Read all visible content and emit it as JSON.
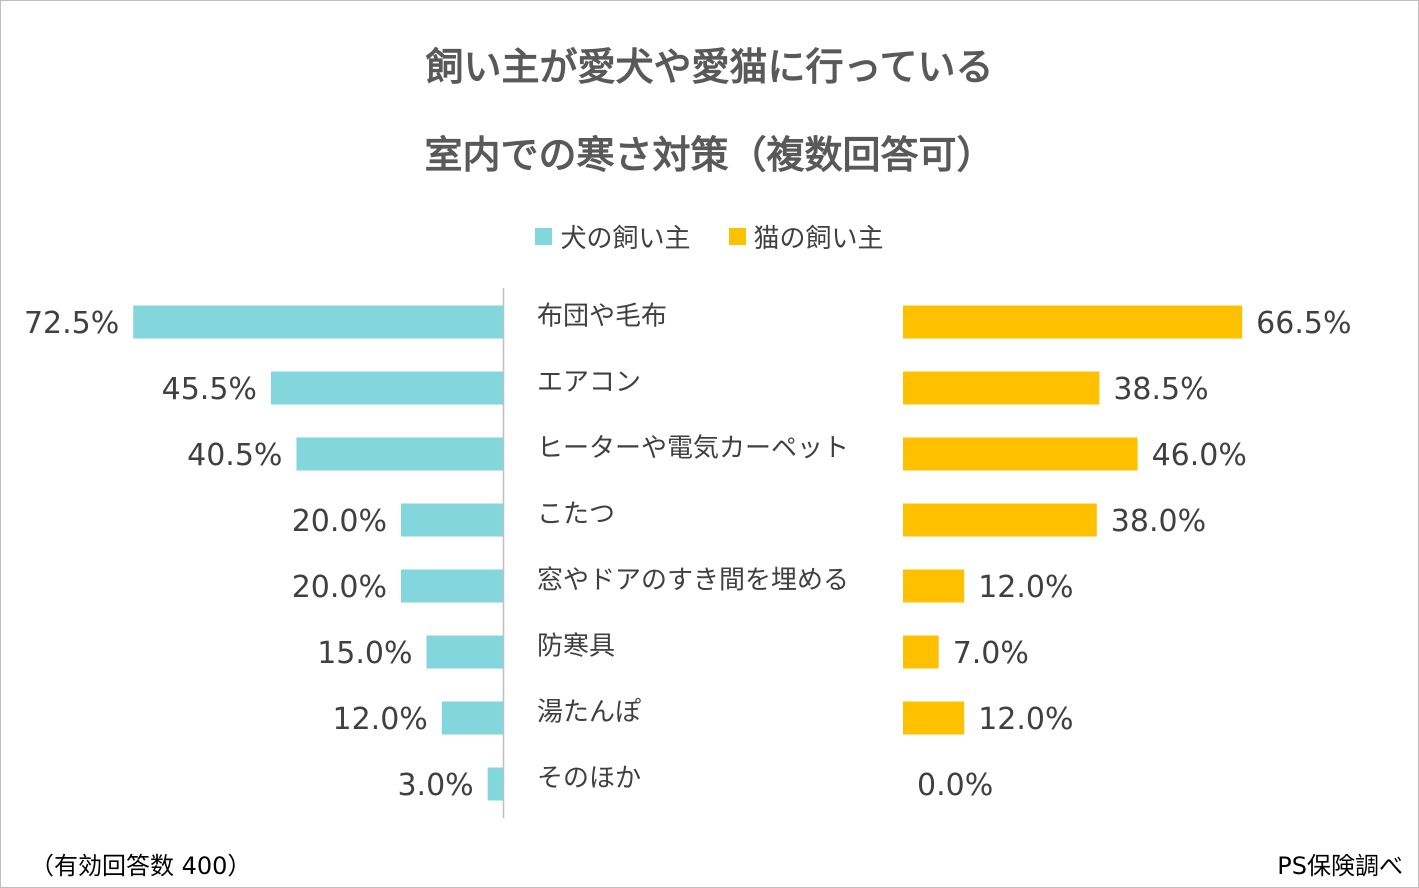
{
  "colors": {
    "dog": "#84d6dd",
    "cat": "#ffc000",
    "axis": "#bfbfbf",
    "text": "#404040"
  },
  "chart_data": {
    "type": "bar",
    "orientation": "horizontal-butterfly",
    "title_line1": "飼い主が愛犬や愛猫に行っている",
    "title_line2": "室内での寒さ対策（複数回答可）",
    "categories": [
      "布団や毛布",
      "エアコン",
      "ヒーターや電気カーペット",
      "こたつ",
      "窓やドアのすき間を埋める",
      "防寒具",
      "湯たんぽ",
      "そのほか"
    ],
    "series": [
      {
        "name": "犬の飼い主",
        "values": [
          72.5,
          45.5,
          40.5,
          20.0,
          20.0,
          15.0,
          12.0,
          3.0
        ],
        "labels": [
          "72.5%",
          "45.5%",
          "40.5%",
          "20.0%",
          "20.0%",
          "15.0%",
          "12.0%",
          "3.0%"
        ]
      },
      {
        "name": "猫の飼い主",
        "values": [
          66.5,
          38.5,
          46.0,
          38.0,
          12.0,
          7.0,
          12.0,
          0.0
        ],
        "labels": [
          "66.5%",
          "38.5%",
          "46.0%",
          "38.0%",
          "12.0%",
          "7.0%",
          "12.0%",
          "0.0%"
        ]
      }
    ],
    "unit": "%",
    "legend_position": "top-center"
  },
  "footnote": "（有効回答数 400）",
  "source": "PS保険調べ"
}
